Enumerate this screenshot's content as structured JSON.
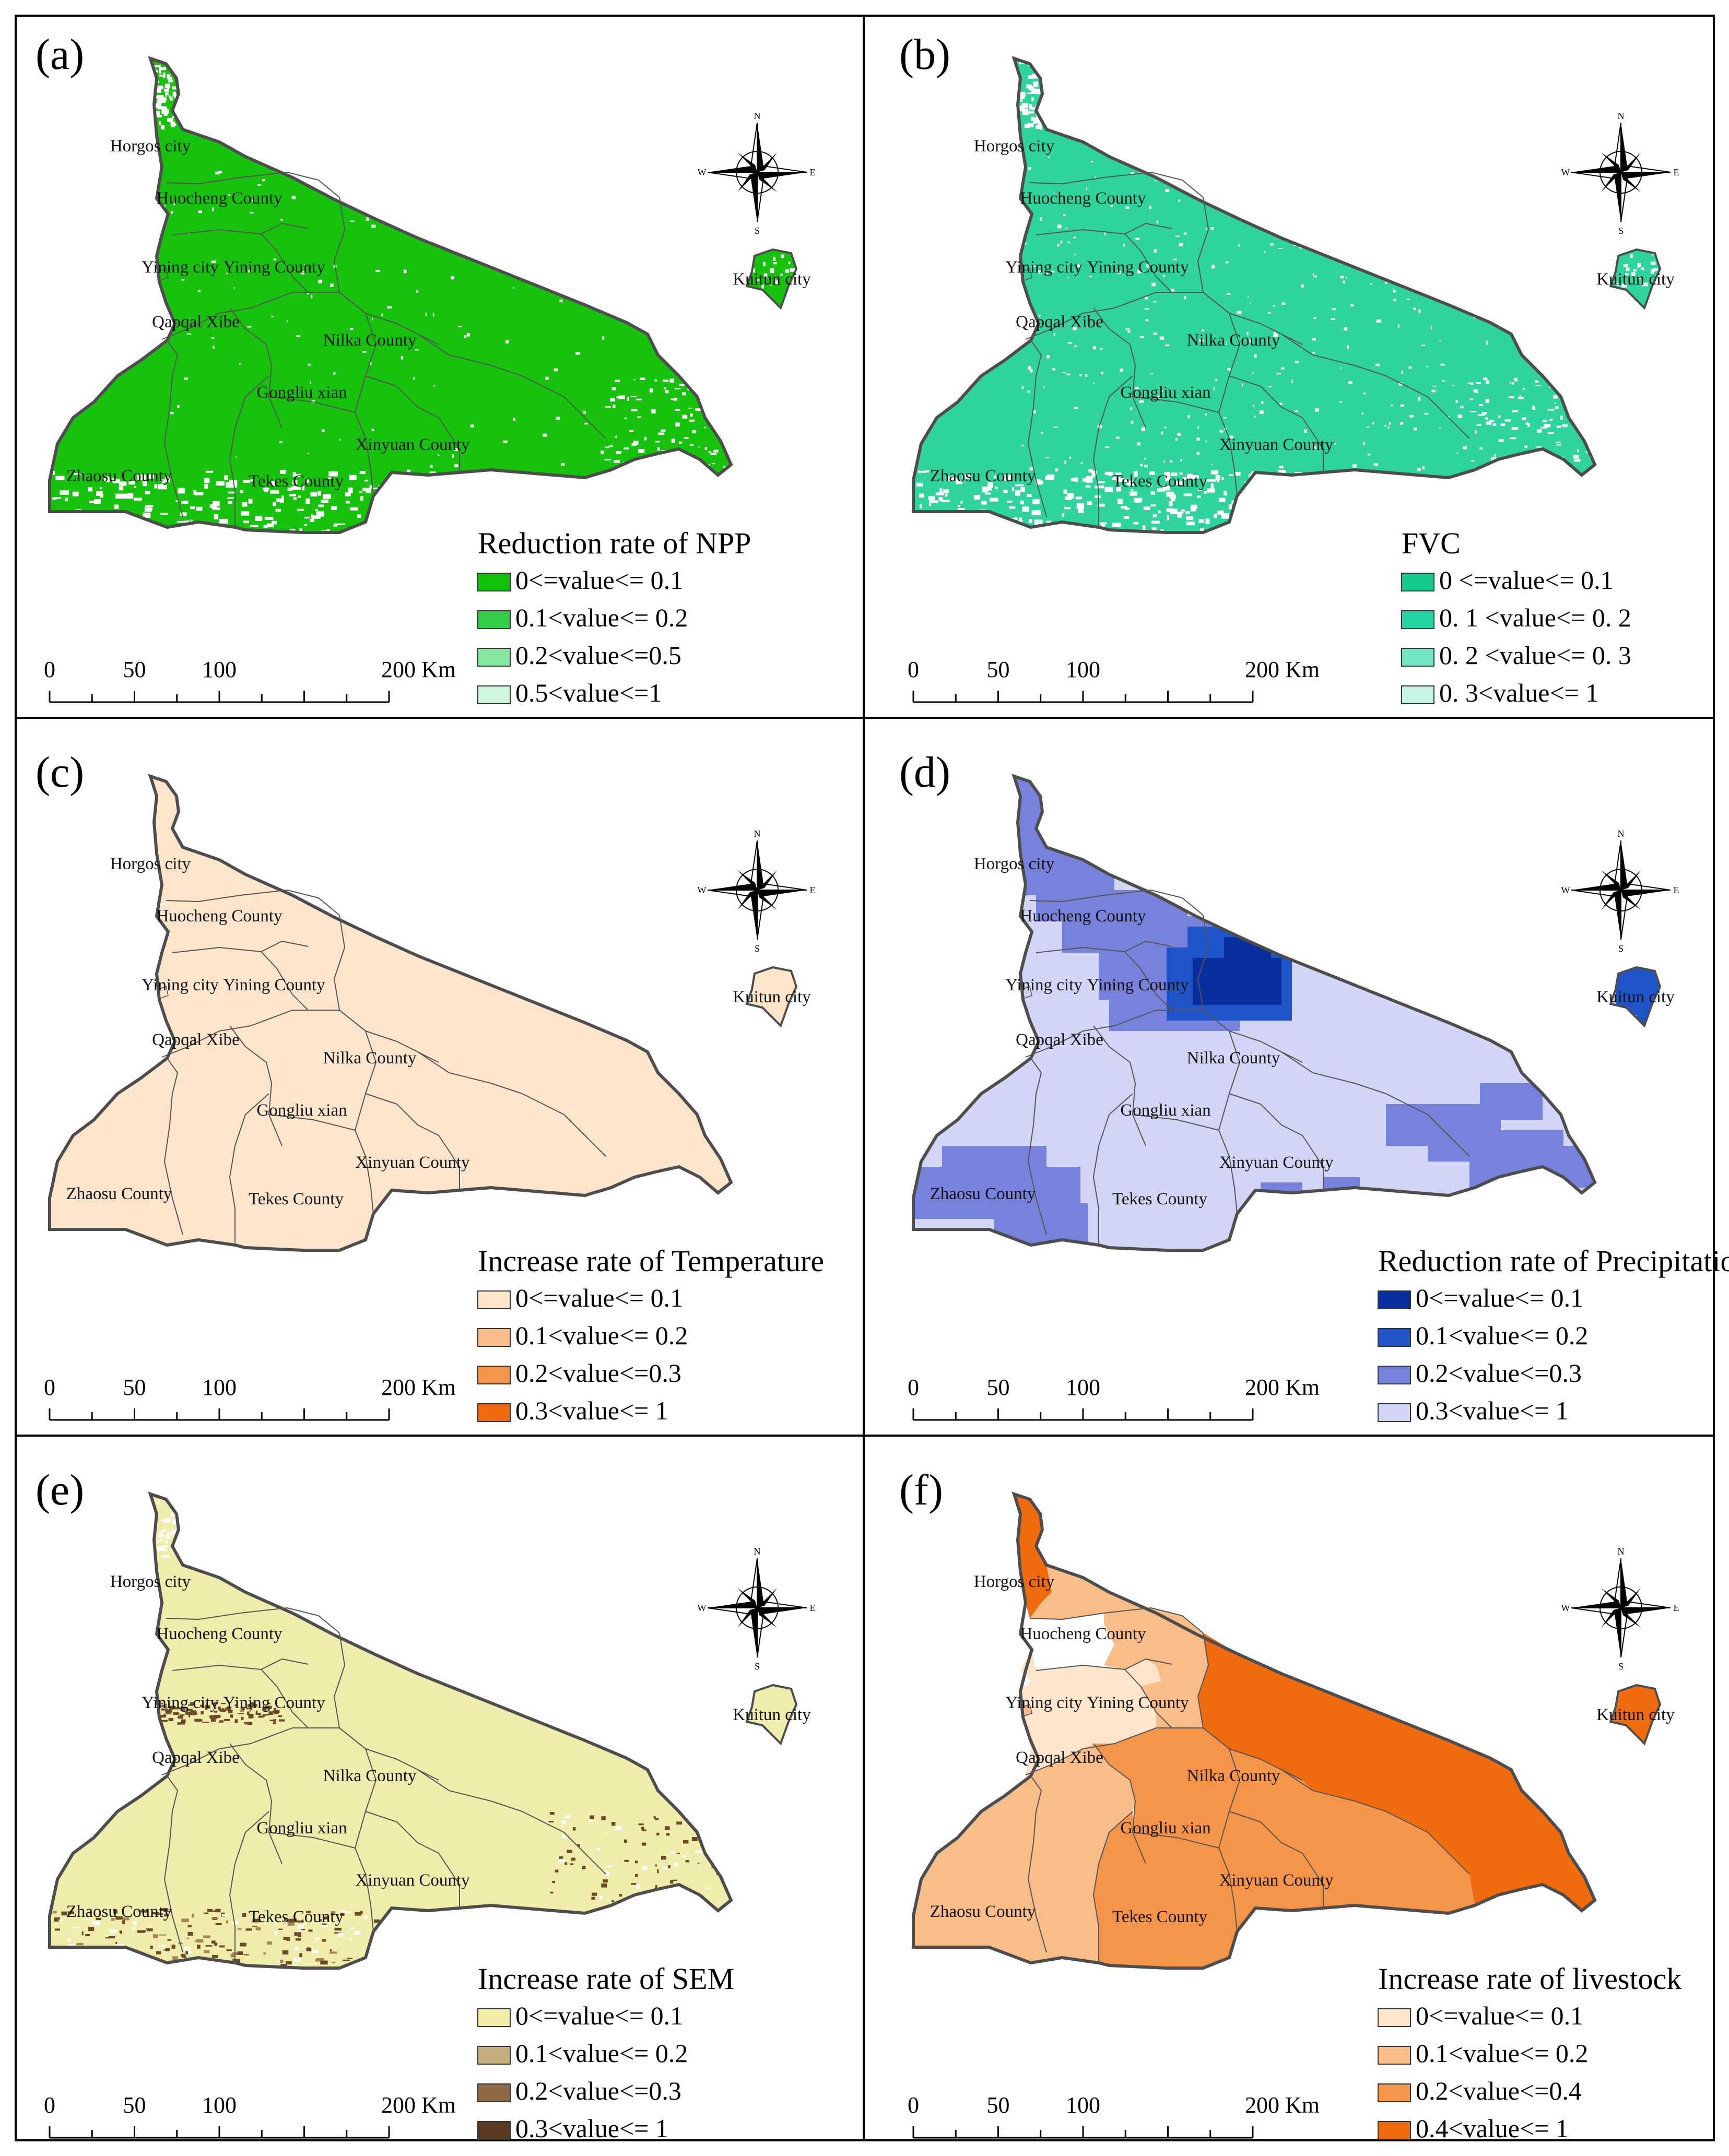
{
  "figure": {
    "compass_labels": {
      "n": "N",
      "s": "S",
      "e": "E",
      "w": "W"
    },
    "scale_bar": {
      "ticks": [
        "0",
        "50",
        "100"
      ],
      "end_label": "200 Km"
    },
    "county_labels": [
      "Horgos city",
      "Huocheng County",
      "Yining city",
      "Yining County",
      "Qapqal Xibe",
      "Nilka County",
      "Gongliu xian",
      "Xinyuan County",
      "Zhaosu  County",
      "Tekes County",
      "Kuitun city"
    ]
  },
  "panels": [
    {
      "label": "(a)",
      "legend_title": "Reduction rate of NPP",
      "style": "speckled",
      "base_color": "#16c20c",
      "outline_color": "#555555",
      "speckle_color": "#ffffff",
      "legend": [
        {
          "label": "0<=value<= 0.1",
          "color": "#0fc30a"
        },
        {
          "label": "0.1<value<= 0.2",
          "color": "#35cc48"
        },
        {
          "label": "0.2<value<=0.5",
          "color": "#84e6a0"
        },
        {
          "label": "0.5<value<=1",
          "color": "#cff7dc"
        }
      ]
    },
    {
      "label": "(b)",
      "legend_title": "FVC",
      "style": "speckled",
      "base_color": "#2ed49b",
      "outline_color": "#555555",
      "speckle_color": "#ffffff",
      "legend": [
        {
          "label": "0 <=value<= 0.1",
          "color": "#12c98a"
        },
        {
          "label": "0. 1 <value<= 0. 2",
          "color": "#22d6a4"
        },
        {
          "label": "0. 2 <value<= 0. 3",
          "color": "#72e6c2"
        },
        {
          "label": "0. 3<value<= 1",
          "color": "#c6f5e6"
        }
      ]
    },
    {
      "label": "(c)",
      "legend_title": "Increase rate of Temperature",
      "style": "flat",
      "base_color": "#fde5cb",
      "outline_color": "#555555",
      "legend": [
        {
          "label": "0<=value<= 0.1",
          "color": "#fde5cb"
        },
        {
          "label": "0.1<value<= 0.2",
          "color": "#f9bd8a"
        },
        {
          "label": "0.2<value<=0.3",
          "color": "#f5954a"
        },
        {
          "label": "0.3<value<= 1",
          "color": "#f06a0e"
        }
      ]
    },
    {
      "label": "(d)",
      "legend_title": "Reduction rate of Precipitation",
      "style": "precip",
      "base_color": "#d3d5f6",
      "outline_color": "#555555",
      "legend": [
        {
          "label": "0<=value<= 0.1",
          "color": "#0b2e9e"
        },
        {
          "label": "0.1<value<= 0.2",
          "color": "#1f55c8"
        },
        {
          "label": "0.2<value<=0.3",
          "color": "#7782dc"
        },
        {
          "label": "0.3<value<= 1",
          "color": "#d3d5f6"
        }
      ]
    },
    {
      "label": "(e)",
      "legend_title": "Increase rate of SEM",
      "style": "sem",
      "base_color": "#f0ecac",
      "outline_color": "#555555",
      "speckle_color": "#6b4a28",
      "legend": [
        {
          "label": "0<=value<= 0.1",
          "color": "#f1eda7"
        },
        {
          "label": "0.1<value<= 0.2",
          "color": "#c4b07e"
        },
        {
          "label": "0.2<value<=0.3",
          "color": "#8f6a45"
        },
        {
          "label": "0.3<value<= 1",
          "color": "#5a3a1e"
        }
      ]
    },
    {
      "label": "(f)",
      "legend_title": "Increase rate of livestock",
      "style": "counties",
      "base_color": "#f9bd8a",
      "outline_color": "#555555",
      "county_fills": {
        "horgos": "#f06a0e",
        "huocheng": "#f9bd8a",
        "yiningcity": "#fde5cb",
        "yiningcounty": "#f9bd8a",
        "qapqal": "#fde5cb",
        "nilka": "#f06a0e",
        "gongliu": "#f5954a",
        "xinyuan": "#f5954a",
        "zhaosu": "#f9bd8a",
        "tekes": "#f5954a",
        "kuitun": "#f06a0e"
      },
      "legend": [
        {
          "label": "0<=value<= 0.1",
          "color": "#fde5cb"
        },
        {
          "label": "0.1<value<= 0.2",
          "color": "#f9bd8a"
        },
        {
          "label": "0.2<value<=0.4",
          "color": "#f5954a"
        },
        {
          "label": "0.4<value<= 1",
          "color": "#f06a0e"
        }
      ]
    }
  ]
}
